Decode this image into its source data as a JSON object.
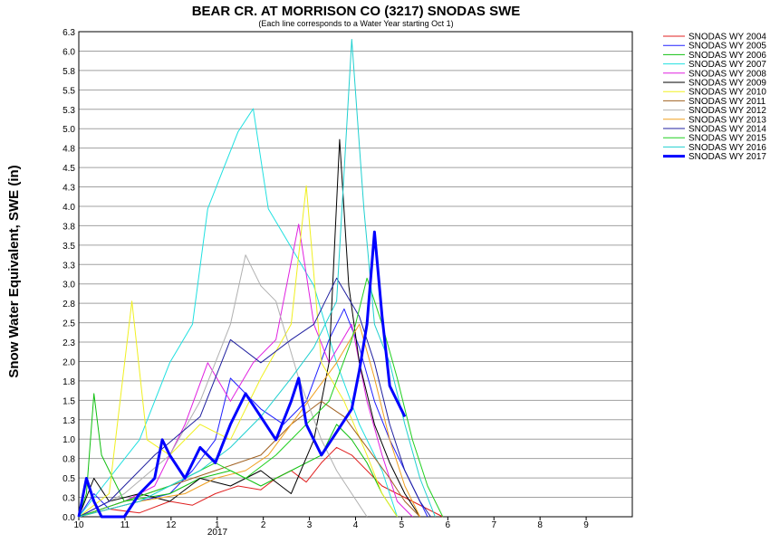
{
  "chart_data": {
    "type": "line",
    "title": "BEAR CR. AT MORRISON CO (3217) SNODAS SWE",
    "subtitle": "(Each line corresponds to a Water Year starting Oct 1)",
    "ylabel": "Snow Water Equivalent, SWE (in)",
    "xlabel": "",
    "ylim": [
      0.0,
      6.3
    ],
    "y_ticks": [
      "0.0",
      "0.3",
      "0.5",
      "0.8",
      "1.0",
      "1.3",
      "1.5",
      "1.8",
      "2.0",
      "2.3",
      "2.5",
      "2.8",
      "3.0",
      "3.3",
      "3.5",
      "3.8",
      "4.0",
      "4.3",
      "4.5",
      "4.8",
      "5.0",
      "5.3",
      "5.5",
      "5.8",
      "6.0",
      "6.3"
    ],
    "x_ticks": [
      "10",
      "11",
      "12",
      "1",
      "2",
      "3",
      "4",
      "5",
      "6",
      "7",
      "8",
      "9"
    ],
    "x_year_label": "2017",
    "grid": true,
    "legend_position": "right",
    "series": [
      {
        "name": "SNODAS WY 2004",
        "color": "#e02020",
        "width": 1,
        "values": [
          [
            0,
            0
          ],
          [
            20,
            0.1
          ],
          [
            40,
            0.05
          ],
          [
            60,
            0.2
          ],
          [
            75,
            0.15
          ],
          [
            90,
            0.3
          ],
          [
            105,
            0.4
          ],
          [
            120,
            0.35
          ],
          [
            130,
            0.5
          ],
          [
            140,
            0.6
          ],
          [
            150,
            0.45
          ],
          [
            160,
            0.7
          ],
          [
            170,
            0.9
          ],
          [
            180,
            0.8
          ],
          [
            190,
            0.6
          ],
          [
            200,
            0.4
          ],
          [
            210,
            0.3
          ],
          [
            220,
            0.2
          ],
          [
            230,
            0.1
          ],
          [
            240,
            0
          ]
        ]
      },
      {
        "name": "SNODAS WY 2005",
        "color": "#2020ff",
        "width": 1,
        "values": [
          [
            0,
            0
          ],
          [
            10,
            0.3
          ],
          [
            20,
            0.1
          ],
          [
            40,
            0.2
          ],
          [
            60,
            0.3
          ],
          [
            75,
            0.6
          ],
          [
            90,
            1.0
          ],
          [
            100,
            1.8
          ],
          [
            110,
            1.6
          ],
          [
            120,
            1.4
          ],
          [
            135,
            1.2
          ],
          [
            150,
            1.5
          ],
          [
            165,
            2.3
          ],
          [
            175,
            2.7
          ],
          [
            185,
            2.2
          ],
          [
            195,
            1.5
          ],
          [
            205,
            1.0
          ],
          [
            215,
            0.6
          ],
          [
            225,
            0.2
          ],
          [
            230,
            0
          ]
        ]
      },
      {
        "name": "SNODAS WY 2006",
        "color": "#10c010",
        "width": 1,
        "values": [
          [
            0,
            0
          ],
          [
            5,
            0.3
          ],
          [
            10,
            1.6
          ],
          [
            15,
            0.8
          ],
          [
            30,
            0.2
          ],
          [
            60,
            0.3
          ],
          [
            80,
            0.5
          ],
          [
            100,
            0.6
          ],
          [
            120,
            0.4
          ],
          [
            140,
            0.6
          ],
          [
            160,
            0.8
          ],
          [
            170,
            1.2
          ],
          [
            180,
            1.0
          ],
          [
            190,
            0.7
          ],
          [
            200,
            0.3
          ],
          [
            210,
            0
          ]
        ]
      },
      {
        "name": "SNODAS WY 2007",
        "color": "#20e0e0",
        "width": 1,
        "values": [
          [
            0,
            0
          ],
          [
            20,
            0.5
          ],
          [
            40,
            1.0
          ],
          [
            60,
            2.0
          ],
          [
            75,
            2.5
          ],
          [
            85,
            4.0
          ],
          [
            95,
            4.5
          ],
          [
            105,
            5.0
          ],
          [
            115,
            5.3
          ],
          [
            125,
            4.0
          ],
          [
            140,
            3.5
          ],
          [
            155,
            3.0
          ],
          [
            170,
            2.0
          ],
          [
            185,
            1.2
          ],
          [
            200,
            0.6
          ],
          [
            210,
            0
          ]
        ]
      },
      {
        "name": "SNODAS WY 2008",
        "color": "#e020e0",
        "width": 1,
        "values": [
          [
            0,
            0
          ],
          [
            30,
            0.2
          ],
          [
            50,
            0.4
          ],
          [
            70,
            1.2
          ],
          [
            85,
            2.0
          ],
          [
            100,
            1.5
          ],
          [
            115,
            2.0
          ],
          [
            130,
            2.3
          ],
          [
            145,
            3.8
          ],
          [
            155,
            2.5
          ],
          [
            165,
            2.0
          ],
          [
            180,
            2.5
          ],
          [
            190,
            1.5
          ],
          [
            200,
            0.8
          ],
          [
            210,
            0.2
          ],
          [
            220,
            0
          ]
        ]
      },
      {
        "name": "SNODAS WY 2009",
        "color": "#000000",
        "width": 1,
        "values": [
          [
            0,
            0
          ],
          [
            10,
            0.5
          ],
          [
            20,
            0.2
          ],
          [
            40,
            0.3
          ],
          [
            60,
            0.2
          ],
          [
            80,
            0.5
          ],
          [
            100,
            0.4
          ],
          [
            120,
            0.6
          ],
          [
            140,
            0.3
          ],
          [
            155,
            1.0
          ],
          [
            165,
            2.0
          ],
          [
            172,
            4.9
          ],
          [
            178,
            3.0
          ],
          [
            185,
            2.0
          ],
          [
            195,
            1.2
          ],
          [
            205,
            0.7
          ],
          [
            215,
            0.3
          ],
          [
            225,
            0
          ]
        ]
      },
      {
        "name": "SNODAS WY 2010",
        "color": "#f0f020",
        "width": 1,
        "values": [
          [
            0,
            0
          ],
          [
            20,
            0.3
          ],
          [
            35,
            2.8
          ],
          [
            45,
            1.0
          ],
          [
            60,
            0.8
          ],
          [
            80,
            1.2
          ],
          [
            100,
            1.0
          ],
          [
            120,
            1.8
          ],
          [
            140,
            2.5
          ],
          [
            150,
            4.3
          ],
          [
            160,
            2.0
          ],
          [
            175,
            1.5
          ],
          [
            190,
            0.8
          ],
          [
            200,
            0.3
          ],
          [
            210,
            0
          ]
        ]
      },
      {
        "name": "SNODAS WY 2011",
        "color": "#a06020",
        "width": 1,
        "values": [
          [
            0,
            0
          ],
          [
            30,
            0.2
          ],
          [
            60,
            0.4
          ],
          [
            90,
            0.6
          ],
          [
            120,
            0.8
          ],
          [
            140,
            1.2
          ],
          [
            160,
            1.5
          ],
          [
            175,
            1.3
          ],
          [
            190,
            0.9
          ],
          [
            205,
            0.5
          ],
          [
            215,
            0.2
          ],
          [
            225,
            0
          ]
        ]
      },
      {
        "name": "SNODAS WY 2012",
        "color": "#b0b0b0",
        "width": 1,
        "values": [
          [
            0,
            0
          ],
          [
            30,
            0.3
          ],
          [
            60,
            0.8
          ],
          [
            80,
            1.5
          ],
          [
            100,
            2.5
          ],
          [
            110,
            3.4
          ],
          [
            120,
            3.0
          ],
          [
            130,
            2.8
          ],
          [
            145,
            1.8
          ],
          [
            160,
            1.0
          ],
          [
            170,
            0.6
          ],
          [
            180,
            0.3
          ],
          [
            190,
            0
          ]
        ]
      },
      {
        "name": "SNODAS WY 2013",
        "color": "#f0a020",
        "width": 1,
        "values": [
          [
            0,
            0
          ],
          [
            40,
            0.2
          ],
          [
            70,
            0.3
          ],
          [
            90,
            0.5
          ],
          [
            110,
            0.6
          ],
          [
            125,
            0.8
          ],
          [
            140,
            1.2
          ],
          [
            155,
            1.6
          ],
          [
            170,
            2.0
          ],
          [
            185,
            2.5
          ],
          [
            195,
            1.8
          ],
          [
            205,
            1.0
          ],
          [
            215,
            0.4
          ],
          [
            225,
            0
          ]
        ]
      },
      {
        "name": "SNODAS WY 2014",
        "color": "#2020a0",
        "width": 1,
        "values": [
          [
            0,
            0
          ],
          [
            20,
            0.2
          ],
          [
            50,
            0.8
          ],
          [
            80,
            1.3
          ],
          [
            100,
            2.3
          ],
          [
            120,
            2.0
          ],
          [
            140,
            2.3
          ],
          [
            155,
            2.5
          ],
          [
            170,
            3.1
          ],
          [
            185,
            2.6
          ],
          [
            195,
            2.0
          ],
          [
            205,
            1.2
          ],
          [
            215,
            0.6
          ],
          [
            225,
            0.2
          ],
          [
            232,
            0
          ]
        ]
      },
      {
        "name": "SNODAS WY 2015",
        "color": "#20d020",
        "width": 1,
        "values": [
          [
            0,
            0
          ],
          [
            30,
            0.2
          ],
          [
            60,
            0.4
          ],
          [
            90,
            0.7
          ],
          [
            110,
            0.5
          ],
          [
            130,
            0.8
          ],
          [
            150,
            1.2
          ],
          [
            165,
            1.5
          ],
          [
            180,
            2.3
          ],
          [
            190,
            3.1
          ],
          [
            200,
            2.5
          ],
          [
            210,
            1.8
          ],
          [
            220,
            1.0
          ],
          [
            230,
            0.4
          ],
          [
            240,
            0
          ]
        ]
      },
      {
        "name": "SNODAS WY 2016",
        "color": "#20d0d0",
        "width": 1,
        "values": [
          [
            0,
            0
          ],
          [
            20,
            0.1
          ],
          [
            40,
            0.2
          ],
          [
            60,
            0.4
          ],
          [
            80,
            0.6
          ],
          [
            100,
            0.9
          ],
          [
            120,
            1.3
          ],
          [
            140,
            1.8
          ],
          [
            155,
            2.2
          ],
          [
            170,
            2.8
          ],
          [
            180,
            6.2
          ],
          [
            188,
            4.0
          ],
          [
            195,
            2.5
          ],
          [
            205,
            2.0
          ],
          [
            215,
            1.2
          ],
          [
            225,
            0.5
          ],
          [
            235,
            0
          ]
        ]
      },
      {
        "name": "SNODAS WY 2017",
        "color": "#0000ff",
        "width": 3,
        "values": [
          [
            0,
            0
          ],
          [
            5,
            0.5
          ],
          [
            10,
            0.2
          ],
          [
            15,
            0
          ],
          [
            30,
            0
          ],
          [
            40,
            0.3
          ],
          [
            50,
            0.5
          ],
          [
            55,
            1.0
          ],
          [
            60,
            0.8
          ],
          [
            70,
            0.5
          ],
          [
            80,
            0.9
          ],
          [
            90,
            0.7
          ],
          [
            100,
            1.2
          ],
          [
            110,
            1.6
          ],
          [
            120,
            1.3
          ],
          [
            130,
            1.0
          ],
          [
            140,
            1.5
          ],
          [
            145,
            1.8
          ],
          [
            150,
            1.2
          ],
          [
            160,
            0.8
          ],
          [
            170,
            1.1
          ],
          [
            180,
            1.4
          ],
          [
            185,
            1.9
          ],
          [
            190,
            2.5
          ],
          [
            195,
            3.7
          ],
          [
            200,
            2.6
          ],
          [
            205,
            1.7
          ],
          [
            210,
            1.5
          ],
          [
            215,
            1.3
          ]
        ]
      }
    ]
  }
}
